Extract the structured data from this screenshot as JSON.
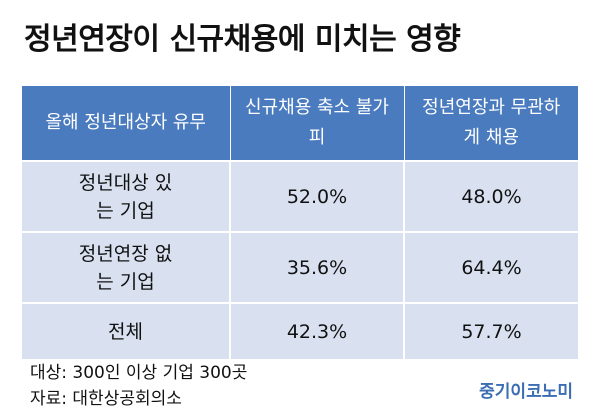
{
  "title": "정년연장이 신규채용에 미치는 영향",
  "table": {
    "headers": [
      "올해 정년대상자 유무",
      "신규채용 축소 불가피",
      "정년연장과 무관하게 채용"
    ],
    "rows": [
      {
        "label": "정년대상 있는 기업",
        "values": [
          "52.0%",
          "48.0%"
        ]
      },
      {
        "label": "정년연장 없는 기업",
        "values": [
          "35.6%",
          "64.4%"
        ]
      },
      {
        "label": "전체",
        "values": [
          "42.3%",
          "57.7%"
        ]
      }
    ]
  },
  "notes": {
    "target": "대상: 300인 이상 기업 300곳",
    "source": "자료: 대한상공회의소"
  },
  "logo": "중기이코노미",
  "colors": {
    "header_bg": "#4a7bbf",
    "cell_bg": "#d9e1f1",
    "logo": "#3a6db3"
  }
}
